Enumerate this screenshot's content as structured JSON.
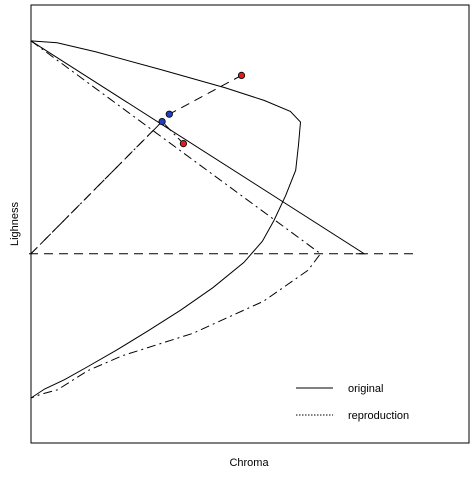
{
  "chart_data": {
    "type": "line",
    "title": "",
    "xlabel": "Chroma",
    "ylabel": "Lighness",
    "xlim": [
      0,
      100
    ],
    "ylim": [
      0,
      100
    ],
    "grid": false,
    "legend_position": "bottom-right",
    "legend": [
      {
        "label": "original",
        "style": "solid"
      },
      {
        "label": "reproduction",
        "style": "dotted"
      }
    ],
    "series": [
      {
        "style": "solid",
        "x": [
          0,
          6.5,
          16.2,
          32.3,
          48.5,
          58.2,
          64.7,
          67.2,
          66.7,
          66.0,
          63.5,
          60.6,
          57.7,
          53.1,
          45.3,
          37.3,
          29.3,
          21.3,
          14.0,
          8.4,
          3.4,
          0
        ],
        "y": [
          91.1,
          90.6,
          88.3,
          83.8,
          79.1,
          75.9,
          73.1,
          70.4,
          64.6,
          58.1,
          51.6,
          45.3,
          40.0,
          34.6,
          28.1,
          22.4,
          17.2,
          12.2,
          7.9,
          4.7,
          2.3,
          0
        ]
      },
      {
        "style": "solid",
        "x": [
          0,
          83.1,
          81.0
        ],
        "y": [
          91.1,
          36.8,
          36.8
        ]
      },
      {
        "style": "dashdot",
        "x": [
          0,
          72.2,
          69.1,
          58.0,
          40.4,
          22.8,
          14.2,
          6.6,
          2.3,
          0
        ],
        "y": [
          91.1,
          36.8,
          32.6,
          24.7,
          16.5,
          10.8,
          7.0,
          2.1,
          0.9,
          0
        ]
      },
      {
        "style": "dashed",
        "x": [
          -0.5,
          96.7
        ],
        "y": [
          36.8,
          36.8
        ]
      },
      {
        "style": "dashed",
        "x": [
          0,
          34.5,
          52.5
        ],
        "y": [
          36.8,
          72.4,
          82.3
        ]
      },
      {
        "style": "dashdot",
        "x": [
          0,
          32.7,
          38.0
        ],
        "y": [
          36.8,
          70.5,
          64.9
        ]
      }
    ],
    "points": [
      {
        "x": 52.5,
        "y": 82.3,
        "color": "#e31a1c"
      },
      {
        "x": 38.0,
        "y": 64.9,
        "color": "#e31a1c"
      },
      {
        "x": 34.5,
        "y": 72.4,
        "color": "#1f3fbf"
      },
      {
        "x": 32.7,
        "y": 70.5,
        "color": "#1f3fbf"
      }
    ]
  }
}
